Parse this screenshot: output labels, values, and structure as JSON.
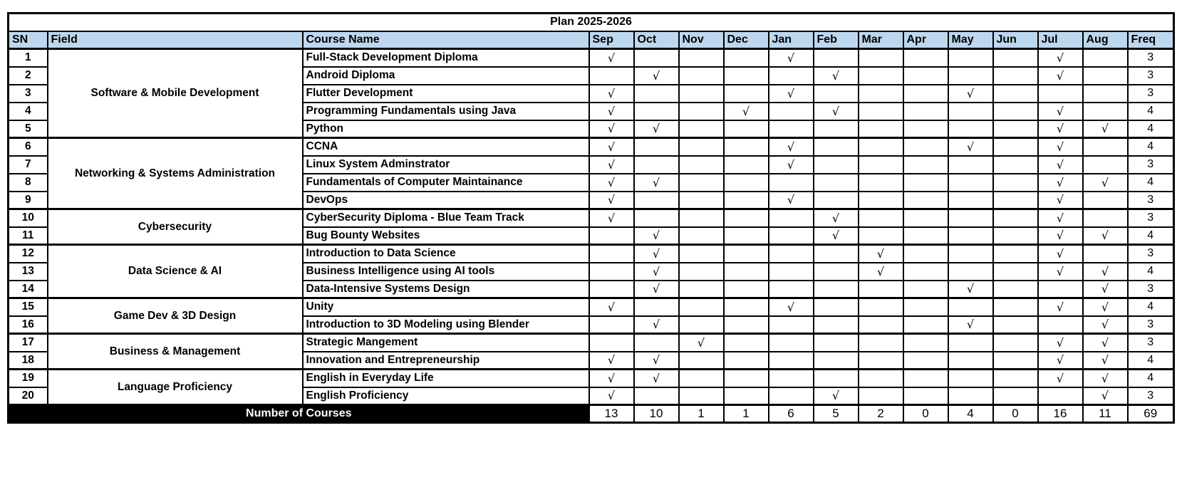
{
  "title": "Plan 2025-2026",
  "check_glyph": "√",
  "colors": {
    "header_bg": "#BDD7EE",
    "footer_bg": "#000000",
    "footer_text": "#FFFFFF",
    "border": "#000000"
  },
  "columns": {
    "sn": "SN",
    "field": "Field",
    "course": "Course Name",
    "months": [
      "Sep",
      "Oct",
      "Nov",
      "Dec",
      "Jan",
      "Feb",
      "Mar",
      "Apr",
      "May",
      "Jun",
      "Jul",
      "Aug"
    ],
    "freq": "Freq"
  },
  "groups": [
    {
      "field": "Software & Mobile Development",
      "courses": [
        {
          "sn": "1",
          "name": "Full-Stack Development Diploma",
          "months": [
            1,
            0,
            0,
            0,
            1,
            0,
            0,
            0,
            0,
            0,
            1,
            0
          ],
          "freq": "3"
        },
        {
          "sn": "2",
          "name": "Android Diploma",
          "months": [
            0,
            1,
            0,
            0,
            0,
            1,
            0,
            0,
            0,
            0,
            1,
            0
          ],
          "freq": "3"
        },
        {
          "sn": "3",
          "name": "Flutter Development",
          "months": [
            1,
            0,
            0,
            0,
            1,
            0,
            0,
            0,
            1,
            0,
            0,
            0
          ],
          "freq": "3"
        },
        {
          "sn": "4",
          "name": "Programming Fundamentals using Java",
          "months": [
            1,
            0,
            0,
            1,
            0,
            1,
            0,
            0,
            0,
            0,
            1,
            0
          ],
          "freq": "4"
        },
        {
          "sn": "5",
          "name": "Python",
          "months": [
            1,
            1,
            0,
            0,
            0,
            0,
            0,
            0,
            0,
            0,
            1,
            1
          ],
          "freq": "4"
        }
      ]
    },
    {
      "field": "Networking & Systems Administration",
      "courses": [
        {
          "sn": "6",
          "name": "CCNA",
          "months": [
            1,
            0,
            0,
            0,
            1,
            0,
            0,
            0,
            1,
            0,
            1,
            0
          ],
          "freq": "4"
        },
        {
          "sn": "7",
          "name": "Linux System Adminstrator",
          "months": [
            1,
            0,
            0,
            0,
            1,
            0,
            0,
            0,
            0,
            0,
            1,
            0
          ],
          "freq": "3"
        },
        {
          "sn": "8",
          "name": "Fundamentals of Computer Maintainance",
          "months": [
            1,
            1,
            0,
            0,
            0,
            0,
            0,
            0,
            0,
            0,
            1,
            1
          ],
          "freq": "4"
        },
        {
          "sn": "9",
          "name": "DevOps",
          "months": [
            1,
            0,
            0,
            0,
            1,
            0,
            0,
            0,
            0,
            0,
            1,
            0
          ],
          "freq": "3"
        }
      ]
    },
    {
      "field": "Cybersecurity",
      "courses": [
        {
          "sn": "10",
          "name": "CyberSecurity Diploma - Blue Team Track",
          "months": [
            1,
            0,
            0,
            0,
            0,
            1,
            0,
            0,
            0,
            0,
            1,
            0
          ],
          "freq": "3"
        },
        {
          "sn": "11",
          "name": "Bug Bounty Websites",
          "months": [
            0,
            1,
            0,
            0,
            0,
            1,
            0,
            0,
            0,
            0,
            1,
            1
          ],
          "freq": "4"
        }
      ]
    },
    {
      "field": "Data Science & AI",
      "courses": [
        {
          "sn": "12",
          "name": "Introduction to Data Science",
          "months": [
            0,
            1,
            0,
            0,
            0,
            0,
            1,
            0,
            0,
            0,
            1,
            0
          ],
          "freq": "3"
        },
        {
          "sn": "13",
          "name": "Business Intelligence using AI tools",
          "months": [
            0,
            1,
            0,
            0,
            0,
            0,
            1,
            0,
            0,
            0,
            1,
            1
          ],
          "freq": "4"
        },
        {
          "sn": "14",
          "name": "Data-Intensive Systems Design",
          "months": [
            0,
            1,
            0,
            0,
            0,
            0,
            0,
            0,
            1,
            0,
            0,
            1
          ],
          "freq": "3"
        }
      ]
    },
    {
      "field": "Game Dev & 3D Design",
      "courses": [
        {
          "sn": "15",
          "name": "Unity",
          "months": [
            1,
            0,
            0,
            0,
            1,
            0,
            0,
            0,
            0,
            0,
            1,
            1
          ],
          "freq": "4"
        },
        {
          "sn": "16",
          "name": "Introduction to 3D Modeling using Blender",
          "months": [
            0,
            1,
            0,
            0,
            0,
            0,
            0,
            0,
            1,
            0,
            0,
            1
          ],
          "freq": "3"
        }
      ]
    },
    {
      "field": "Business & Management",
      "courses": [
        {
          "sn": "17",
          "name": "Strategic Mangement",
          "months": [
            0,
            0,
            1,
            0,
            0,
            0,
            0,
            0,
            0,
            0,
            1,
            1
          ],
          "freq": "3"
        },
        {
          "sn": "18",
          "name": "Innovation and Entrepreneurship",
          "months": [
            1,
            1,
            0,
            0,
            0,
            0,
            0,
            0,
            0,
            0,
            1,
            1
          ],
          "freq": "4"
        }
      ]
    },
    {
      "field": "Language Proficiency",
      "courses": [
        {
          "sn": "19",
          "name": "English in Everyday Life",
          "months": [
            1,
            1,
            0,
            0,
            0,
            0,
            0,
            0,
            0,
            0,
            1,
            1
          ],
          "freq": "4"
        },
        {
          "sn": "20",
          "name": "English Proficiency",
          "months": [
            1,
            0,
            0,
            0,
            0,
            1,
            0,
            0,
            0,
            0,
            0,
            1
          ],
          "freq": "3"
        }
      ]
    }
  ],
  "footer": {
    "label": "Number of Courses",
    "totals": [
      "13",
      "10",
      "1",
      "1",
      "6",
      "5",
      "2",
      "0",
      "4",
      "0",
      "16",
      "11"
    ],
    "grand_total": "69"
  }
}
